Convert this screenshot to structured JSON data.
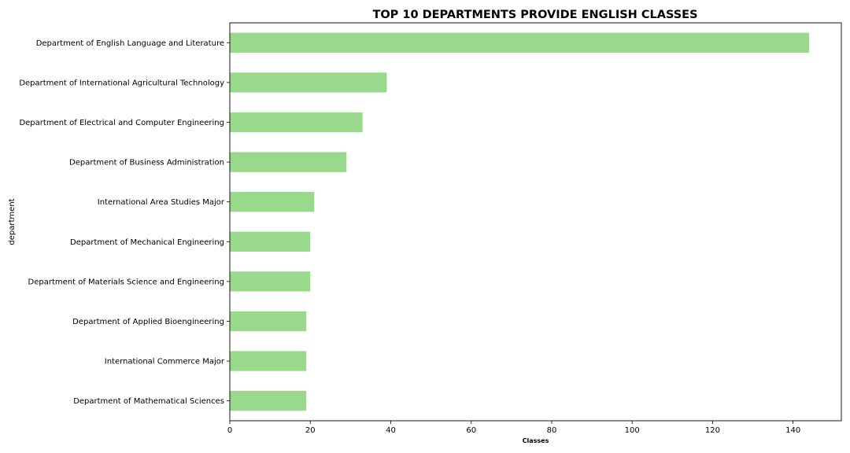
{
  "chart_data": {
    "type": "bar",
    "orientation": "horizontal",
    "title": "TOP 10 DEPARTMENTS PROVIDE ENGLISH CLASSES",
    "xlabel": "Classes",
    "ylabel": "department",
    "xlim": [
      0,
      152
    ],
    "xticks": [
      0,
      20,
      40,
      60,
      80,
      100,
      120,
      140
    ],
    "grid": false,
    "bar_color": "#99d98c",
    "categories": [
      "Department of English Language and Literature",
      "Department of International Agricultural Technology",
      "Department of Electrical and Computer Engineering",
      "Department of Business Administration",
      "International Area Studies Major",
      "Department of Mechanical Engineering",
      "Department of Materials Science and Engineering",
      "Department of Applied Bioengineering",
      "International Commerce Major",
      "Department of Mathematical Sciences"
    ],
    "values": [
      144,
      39,
      33,
      29,
      21,
      20,
      20,
      19,
      19,
      19
    ]
  }
}
